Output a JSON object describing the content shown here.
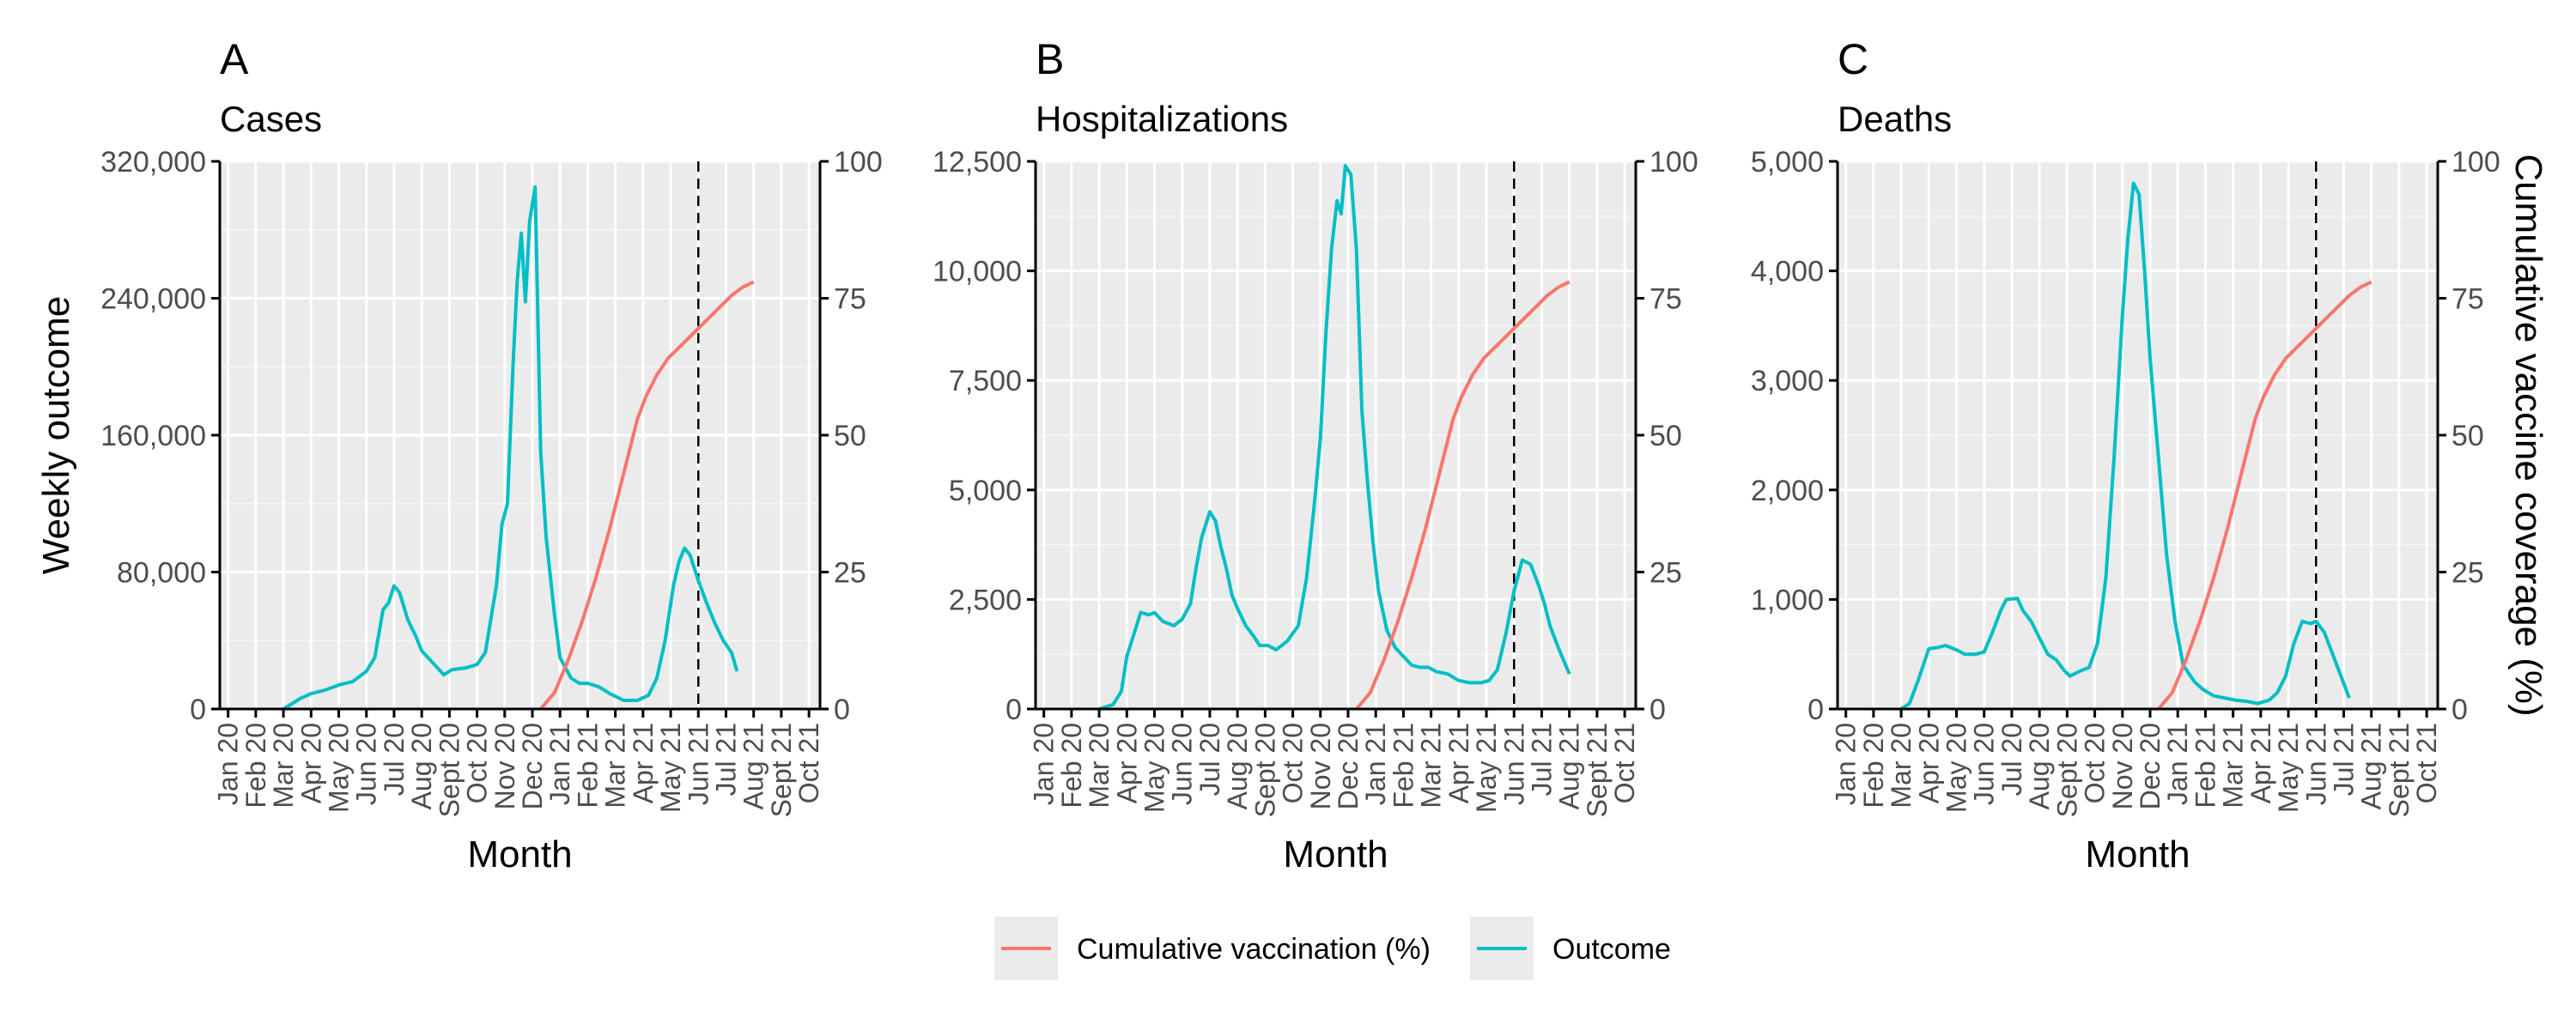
{
  "legend": {
    "items": [
      {
        "label": "Cumulative vaccination (%)",
        "color": "#F8766D"
      },
      {
        "label": "Outcome",
        "color": "#00BFC4"
      }
    ],
    "position": "bottom"
  },
  "chart_data": [
    {
      "type": "line",
      "panel_letter": "A",
      "subtitle": "Cases",
      "xlabel": "Month",
      "ylabel": "Weekly outcome",
      "y2label": "",
      "ylim": [
        0,
        320000
      ],
      "yticks": [
        0,
        80000,
        160000,
        240000,
        320000
      ],
      "ytick_labels": [
        "0",
        "80,000",
        "160,000",
        "240,000",
        "320,000"
      ],
      "y2lim": [
        0,
        100
      ],
      "y2ticks": [
        0,
        25,
        50,
        75,
        100
      ],
      "xlim": [
        -0.3,
        21.4
      ],
      "x_ticks": [
        "Jan 20",
        "Feb 20",
        "Mar 20",
        "Apr 20",
        "May 20",
        "Jun 20",
        "Jul 20",
        "Aug 20",
        "Sept 20",
        "Oct 20",
        "Nov 20",
        "Dec 20",
        "Jan 21",
        "Feb 21",
        "Mar 21",
        "Apr 21",
        "May 21",
        "Jun 21",
        "Jul 21",
        "Aug 21",
        "Sept 21",
        "Oct 21"
      ],
      "vline_x": 17.0,
      "grid": true,
      "series": [
        {
          "key": "Outcome",
          "color": "#00BFC4",
          "points": [
            [
              2,
              0
            ],
            [
              2.3,
              3000
            ],
            [
              2.6,
              6000
            ],
            [
              3,
              9000
            ],
            [
              3.5,
              11000
            ],
            [
              4,
              14000
            ],
            [
              4.5,
              16000
            ],
            [
              5,
              22000
            ],
            [
              5.3,
              30000
            ],
            [
              5.6,
              58000
            ],
            [
              5.8,
              62000
            ],
            [
              6,
              72000
            ],
            [
              6.2,
              68000
            ],
            [
              6.5,
              52000
            ],
            [
              6.8,
              42000
            ],
            [
              7,
              34000
            ],
            [
              7.4,
              27000
            ],
            [
              7.8,
              20000
            ],
            [
              8.1,
              23000
            ],
            [
              8.6,
              24000
            ],
            [
              9,
              26000
            ],
            [
              9.3,
              33000
            ],
            [
              9.7,
              72000
            ],
            [
              9.9,
              108000
            ],
            [
              10.1,
              120000
            ],
            [
              10.3,
              200000
            ],
            [
              10.45,
              250000
            ],
            [
              10.6,
              278000
            ],
            [
              10.75,
              238000
            ],
            [
              10.9,
              285000
            ],
            [
              11.1,
              305000
            ],
            [
              11.3,
              150000
            ],
            [
              11.5,
              100000
            ],
            [
              11.8,
              55000
            ],
            [
              12,
              30000
            ],
            [
              12.4,
              18000
            ],
            [
              12.7,
              15000
            ],
            [
              13,
              15000
            ],
            [
              13.4,
              13000
            ],
            [
              13.8,
              9000
            ],
            [
              14.3,
              5000
            ],
            [
              14.8,
              5000
            ],
            [
              15.2,
              8000
            ],
            [
              15.5,
              18000
            ],
            [
              15.8,
              40000
            ],
            [
              16.1,
              72000
            ],
            [
              16.3,
              86000
            ],
            [
              16.5,
              94000
            ],
            [
              16.7,
              90000
            ],
            [
              17,
              75000
            ],
            [
              17.3,
              62000
            ],
            [
              17.6,
              50000
            ],
            [
              17.9,
              40000
            ],
            [
              18.2,
              33000
            ],
            [
              18.4,
              22000
            ]
          ]
        },
        {
          "key": "Cumulative vaccination (%)",
          "color": "#F8766D",
          "points": [
            [
              11.3,
              0
            ],
            [
              11.8,
              3
            ],
            [
              12.3,
              9
            ],
            [
              12.8,
              16
            ],
            [
              13.3,
              24
            ],
            [
              13.8,
              33
            ],
            [
              14.3,
              43
            ],
            [
              14.8,
              53
            ],
            [
              15.1,
              57
            ],
            [
              15.5,
              61
            ],
            [
              15.9,
              64
            ],
            [
              16.3,
              66
            ],
            [
              16.7,
              68
            ],
            [
              17.1,
              70
            ],
            [
              17.5,
              72
            ],
            [
              17.9,
              74
            ],
            [
              18.2,
              75.5
            ],
            [
              18.6,
              77
            ],
            [
              19,
              78
            ]
          ]
        }
      ]
    },
    {
      "type": "line",
      "panel_letter": "B",
      "subtitle": "Hospitalizations",
      "xlabel": "Month",
      "ylabel": "",
      "y2label": "",
      "ylim": [
        0,
        12500
      ],
      "yticks": [
        0,
        2500,
        5000,
        7500,
        10000,
        12500
      ],
      "ytick_labels": [
        "0",
        "2,500",
        "5,000",
        "7,500",
        "10,000",
        "12,500"
      ],
      "y2lim": [
        0,
        100
      ],
      "y2ticks": [
        0,
        25,
        50,
        75,
        100
      ],
      "xlim": [
        -0.3,
        21.4
      ],
      "x_ticks": [
        "Jan 20",
        "Feb 20",
        "Mar 20",
        "Apr 20",
        "May 20",
        "Jun 20",
        "Jul 20",
        "Aug 20",
        "Sept 20",
        "Oct 20",
        "Nov 20",
        "Dec 20",
        "Jan 21",
        "Feb 21",
        "Mar 21",
        "Apr 21",
        "May 21",
        "Jun 21",
        "Jul 21",
        "Aug 21",
        "Sept 21",
        "Oct 21"
      ],
      "vline_x": 17.0,
      "grid": true,
      "series": [
        {
          "key": "Outcome",
          "color": "#00BFC4",
          "points": [
            [
              2,
              0
            ],
            [
              2.5,
              100
            ],
            [
              2.8,
              400
            ],
            [
              3,
              1200
            ],
            [
              3.3,
              1800
            ],
            [
              3.5,
              2200
            ],
            [
              3.8,
              2150
            ],
            [
              4,
              2200
            ],
            [
              4.3,
              2000
            ],
            [
              4.7,
              1900
            ],
            [
              5,
              2050
            ],
            [
              5.3,
              2400
            ],
            [
              5.5,
              3200
            ],
            [
              5.7,
              3900
            ],
            [
              6,
              4500
            ],
            [
              6.2,
              4300
            ],
            [
              6.4,
              3700
            ],
            [
              6.6,
              3200
            ],
            [
              6.8,
              2600
            ],
            [
              7,
              2300
            ],
            [
              7.3,
              1900
            ],
            [
              7.6,
              1650
            ],
            [
              7.8,
              1450
            ],
            [
              8.1,
              1450
            ],
            [
              8.4,
              1350
            ],
            [
              8.8,
              1550
            ],
            [
              9.2,
              1900
            ],
            [
              9.5,
              3000
            ],
            [
              9.8,
              4800
            ],
            [
              10,
              6200
            ],
            [
              10.2,
              8600
            ],
            [
              10.4,
              10500
            ],
            [
              10.6,
              11600
            ],
            [
              10.75,
              11300
            ],
            [
              10.9,
              12400
            ],
            [
              11.1,
              12200
            ],
            [
              11.3,
              10500
            ],
            [
              11.5,
              6800
            ],
            [
              11.7,
              5200
            ],
            [
              11.9,
              3800
            ],
            [
              12.1,
              2700
            ],
            [
              12.4,
              1800
            ],
            [
              12.7,
              1400
            ],
            [
              13,
              1200
            ],
            [
              13.3,
              1000
            ],
            [
              13.6,
              950
            ],
            [
              13.9,
              950
            ],
            [
              14.2,
              850
            ],
            [
              14.6,
              800
            ],
            [
              15,
              650
            ],
            [
              15.4,
              600
            ],
            [
              15.8,
              600
            ],
            [
              16.1,
              650
            ],
            [
              16.4,
              900
            ],
            [
              16.7,
              1700
            ],
            [
              17,
              2700
            ],
            [
              17.3,
              3400
            ],
            [
              17.6,
              3300
            ],
            [
              17.9,
              2800
            ],
            [
              18.1,
              2400
            ],
            [
              18.3,
              1900
            ],
            [
              18.6,
              1400
            ],
            [
              18.8,
              1100
            ],
            [
              19,
              800
            ]
          ]
        },
        {
          "key": "Cumulative vaccination (%)",
          "color": "#F8766D",
          "points": [
            [
              11.3,
              0
            ],
            [
              11.8,
              3
            ],
            [
              12.3,
              9
            ],
            [
              12.8,
              16
            ],
            [
              13.3,
              24
            ],
            [
              13.8,
              33
            ],
            [
              14.3,
              43
            ],
            [
              14.8,
              53
            ],
            [
              15.1,
              57
            ],
            [
              15.5,
              61
            ],
            [
              15.9,
              64
            ],
            [
              16.3,
              66
            ],
            [
              16.7,
              68
            ],
            [
              17.1,
              70
            ],
            [
              17.5,
              72
            ],
            [
              17.9,
              74
            ],
            [
              18.2,
              75.5
            ],
            [
              18.6,
              77
            ],
            [
              19,
              78
            ]
          ]
        }
      ]
    },
    {
      "type": "line",
      "panel_letter": "C",
      "subtitle": "Deaths",
      "xlabel": "Month",
      "ylabel": "",
      "y2label": "Cumulative vaccine coverage (%)",
      "ylim": [
        0,
        5000
      ],
      "yticks": [
        0,
        1000,
        2000,
        3000,
        4000,
        5000
      ],
      "ytick_labels": [
        "0",
        "1,000",
        "2,000",
        "3,000",
        "4,000",
        "5,000"
      ],
      "y2lim": [
        0,
        100
      ],
      "y2ticks": [
        0,
        25,
        50,
        75,
        100
      ],
      "xlim": [
        -0.3,
        21.4
      ],
      "x_ticks": [
        "Jan 20",
        "Feb 20",
        "Mar 20",
        "Apr 20",
        "May 20",
        "Jun 20",
        "Jul 20",
        "Aug 20",
        "Sept 20",
        "Oct 20",
        "Nov 20",
        "Dec 20",
        "Jan 21",
        "Feb 21",
        "Mar 21",
        "Apr 21",
        "May 21",
        "Jun 21",
        "Jul 21",
        "Aug 21",
        "Sept 21",
        "Oct 21"
      ],
      "vline_x": 17.0,
      "grid": true,
      "series": [
        {
          "key": "Outcome",
          "color": "#00BFC4",
          "points": [
            [
              2,
              0
            ],
            [
              2.3,
              50
            ],
            [
              2.6,
              250
            ],
            [
              3,
              550
            ],
            [
              3.3,
              560
            ],
            [
              3.6,
              580
            ],
            [
              4,
              540
            ],
            [
              4.3,
              500
            ],
            [
              4.7,
              500
            ],
            [
              5,
              520
            ],
            [
              5.3,
              700
            ],
            [
              5.6,
              900
            ],
            [
              5.8,
              1000
            ],
            [
              6.2,
              1010
            ],
            [
              6.4,
              900
            ],
            [
              6.7,
              800
            ],
            [
              7,
              650
            ],
            [
              7.3,
              500
            ],
            [
              7.6,
              450
            ],
            [
              7.9,
              350
            ],
            [
              8.1,
              300
            ],
            [
              8.5,
              350
            ],
            [
              8.8,
              380
            ],
            [
              9.1,
              600
            ],
            [
              9.4,
              1200
            ],
            [
              9.7,
              2300
            ],
            [
              10,
              3600
            ],
            [
              10.2,
              4300
            ],
            [
              10.4,
              4800
            ],
            [
              10.6,
              4700
            ],
            [
              10.8,
              4000
            ],
            [
              11,
              3200
            ],
            [
              11.3,
              2300
            ],
            [
              11.6,
              1400
            ],
            [
              11.9,
              800
            ],
            [
              12.2,
              400
            ],
            [
              12.6,
              250
            ],
            [
              12.9,
              180
            ],
            [
              13.3,
              120
            ],
            [
              13.7,
              100
            ],
            [
              14.1,
              80
            ],
            [
              14.5,
              70
            ],
            [
              14.9,
              50
            ],
            [
              15.3,
              80
            ],
            [
              15.6,
              150
            ],
            [
              15.9,
              300
            ],
            [
              16.2,
              600
            ],
            [
              16.5,
              800
            ],
            [
              16.8,
              780
            ],
            [
              17,
              800
            ],
            [
              17.3,
              700
            ],
            [
              17.6,
              500
            ],
            [
              17.9,
              300
            ],
            [
              18.2,
              100
            ]
          ]
        },
        {
          "key": "Cumulative vaccination (%)",
          "color": "#F8766D",
          "points": [
            [
              11.3,
              0
            ],
            [
              11.8,
              3
            ],
            [
              12.3,
              9
            ],
            [
              12.8,
              16
            ],
            [
              13.3,
              24
            ],
            [
              13.8,
              33
            ],
            [
              14.3,
              43
            ],
            [
              14.8,
              53
            ],
            [
              15.1,
              57
            ],
            [
              15.5,
              61
            ],
            [
              15.9,
              64
            ],
            [
              16.3,
              66
            ],
            [
              16.7,
              68
            ],
            [
              17.1,
              70
            ],
            [
              17.5,
              72
            ],
            [
              17.9,
              74
            ],
            [
              18.2,
              75.5
            ],
            [
              18.6,
              77
            ],
            [
              19,
              78
            ]
          ]
        }
      ]
    }
  ]
}
